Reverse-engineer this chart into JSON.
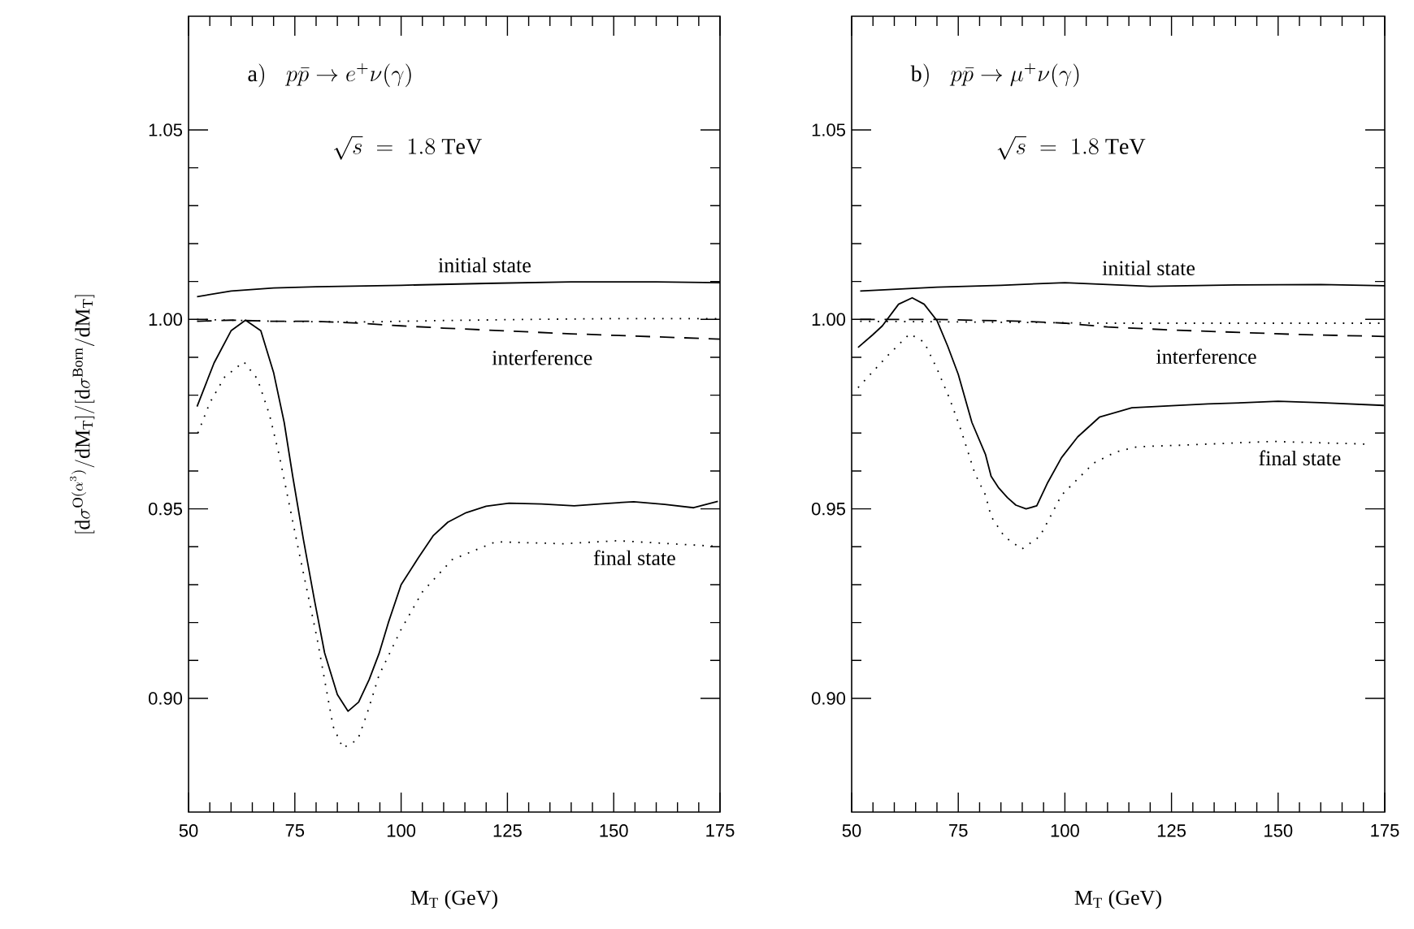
{
  "chart_data": [
    {
      "type": "line",
      "title": "\\mathrm{a)}\\;\\;\\; p\\bar{p}\\rightarrow e^{+}\\nu(\\gamma)",
      "subtitle": "\\sqrt{s}\\;=\\;1.8\\ \\mathrm{TeV}",
      "xlabel": "M$_{T}$ (GeV)",
      "ylabel": "[\\mathrm{d}\\sigma^{\\mathrm{O}(\\alpha^3)}/\\mathrm{dM_T}]/[\\mathrm{d}\\sigma^{\\mathrm{Born}}/\\mathrm{dM_T}]",
      "xlim": [
        50,
        175
      ],
      "xticks": [
        50,
        75,
        100,
        125,
        150,
        175
      ],
      "ylim": [
        0.87,
        1.08
      ],
      "yticks": [
        {
          "value": 0.9,
          "label": "0.90"
        },
        {
          "value": 0.95,
          "label": "0.95"
        },
        {
          "value": 1.0,
          "label": "1.00"
        },
        {
          "value": 1.05,
          "label": "1.05"
        }
      ],
      "marker": "none",
      "series": [
        {
          "name": "initial state",
          "color": "#000000",
          "line_style": "solid",
          "x": [
            52,
            60,
            70,
            80,
            100,
            120,
            140,
            160,
            175
          ],
          "values": [
            1.006,
            1.0075,
            1.0083,
            1.0086,
            1.009,
            1.0095,
            1.0099,
            1.0099,
            1.0097
          ]
        },
        {
          "name": "interference",
          "color": "#000000",
          "line_style": "dashed",
          "x": [
            52,
            60,
            70,
            80,
            90,
            100,
            110,
            120,
            130,
            140,
            150,
            160,
            175
          ],
          "values": [
            0.9995,
            0.9998,
            0.9995,
            0.9995,
            0.999,
            0.9983,
            0.9977,
            0.9972,
            0.9967,
            0.9962,
            0.9958,
            0.9954,
            0.9948
          ]
        },
        {
          "name": "final state",
          "color": "#000000",
          "line_style": "solid",
          "x": [
            52,
            56,
            60,
            63.4,
            67,
            70,
            72.5,
            74.5,
            77,
            79.6,
            82,
            85,
            87.5,
            90,
            92.5,
            94.8,
            97,
            100,
            104,
            107.6,
            111,
            115.3,
            120,
            125.4,
            133,
            140.7,
            148,
            154.7,
            162,
            168.8,
            174.5
          ],
          "values": [
            0.977,
            0.9885,
            0.997,
            0.9998,
            0.997,
            0.986,
            0.9728,
            0.9586,
            0.942,
            0.926,
            0.912,
            0.901,
            0.8966,
            0.899,
            0.905,
            0.9118,
            0.92,
            0.93,
            0.937,
            0.943,
            0.9465,
            0.949,
            0.9507,
            0.9515,
            0.9513,
            0.9508,
            0.9514,
            0.9519,
            0.9512,
            0.9503,
            0.952
          ]
        },
        {
          "color": "#000000",
          "line_style": "dotted",
          "x": [
            52,
            70,
            90,
            110,
            130,
            150,
            175
          ],
          "values": [
            1.0,
            0.9995,
            0.9993,
            0.9997,
            1.0,
            1.0002,
            1.0002
          ]
        },
        {
          "color": "#000000",
          "line_style": "dotted",
          "x": [
            52.2,
            55,
            58.5,
            63,
            66.2,
            69,
            71.3,
            75.7,
            80.2,
            84,
            86.3,
            89.8,
            92,
            94.8,
            100,
            105,
            112,
            122.2,
            138.2,
            150.9,
            174.5
          ],
          "values": [
            0.97,
            0.978,
            0.9848,
            0.9888,
            0.9843,
            0.975,
            0.9643,
            0.9401,
            0.916,
            0.8926,
            0.8869,
            0.8891,
            0.896,
            0.9061,
            0.9182,
            0.9281,
            0.9366,
            0.9413,
            0.9408,
            0.9416,
            0.9401
          ]
        }
      ]
    },
    {
      "type": "line",
      "title": "\\mathrm{b)}\\;\\;\\; p\\bar{p}\\rightarrow \\mu^{+}\\nu(\\gamma)",
      "subtitle": "\\sqrt{s}\\;=\\;1.8\\ \\mathrm{TeV}",
      "xlabel": "M$_{T}$ (GeV)",
      "xlim": [
        50,
        175
      ],
      "xticks": [
        50,
        75,
        100,
        125,
        150,
        175
      ],
      "ylim": [
        0.87,
        1.08
      ],
      "yticks": [
        {
          "value": 0.9,
          "label": "0.90"
        },
        {
          "value": 0.95,
          "label": "0.95"
        },
        {
          "value": 1.0,
          "label": "1.00"
        },
        {
          "value": 1.05,
          "label": "1.05"
        }
      ],
      "marker": "none",
      "series": [
        {
          "name": "initial state",
          "color": "#000000",
          "line_style": "solid",
          "x": [
            52,
            70,
            85,
            100,
            120,
            140,
            160,
            175
          ],
          "values": [
            1.0075,
            1.0085,
            1.009,
            1.0097,
            1.0087,
            1.0091,
            1.0092,
            1.0089
          ]
        },
        {
          "name": "interference",
          "color": "#000000",
          "line_style": "dashed",
          "x": [
            52,
            70,
            90,
            100,
            110,
            125,
            140,
            155,
            175
          ],
          "values": [
            1.0,
            1.0,
            0.9995,
            0.999,
            0.998,
            0.9972,
            0.9966,
            0.996,
            0.9955
          ]
        },
        {
          "name": "final state",
          "color": "#000000",
          "line_style": "solid",
          "x": [
            51.5,
            55,
            57.2,
            61,
            64.2,
            67,
            70,
            72.5,
            75,
            78.2,
            81.4,
            82.7,
            84.5,
            86.5,
            88.5,
            90.9,
            93.4,
            96,
            99.2,
            103,
            108.1,
            115.7,
            125,
            133.5,
            142,
            150,
            160,
            174.8
          ],
          "values": [
            0.9926,
            0.996,
            0.9983,
            1.004,
            1.0057,
            1.004,
            0.9997,
            0.993,
            0.9855,
            0.9728,
            0.9643,
            0.9586,
            0.9555,
            0.953,
            0.951,
            0.95,
            0.9508,
            0.957,
            0.9635,
            0.969,
            0.9742,
            0.9767,
            0.9772,
            0.9777,
            0.978,
            0.9784,
            0.978,
            0.9773
          ]
        },
        {
          "color": "#000000",
          "line_style": "dotted",
          "x": [
            52,
            80,
            110,
            140,
            175
          ],
          "values": [
            0.9995,
            0.9993,
            0.999,
            0.999,
            0.999
          ]
        },
        {
          "color": "#000000",
          "line_style": "dotted",
          "x": [
            51.5,
            58.5,
            63.6,
            67,
            70,
            73,
            75.7,
            78.9,
            81.4,
            82.7,
            85.8,
            89.9,
            94.1,
            96.6,
            99.2,
            103,
            106.8,
            111.9,
            117,
            127.1,
            148.7,
            170.3
          ],
          "values": [
            0.982,
            0.9905,
            0.9962,
            0.994,
            0.987,
            0.979,
            0.9706,
            0.9593,
            0.9536,
            0.948,
            0.9427,
            0.9394,
            0.9427,
            0.948,
            0.9536,
            0.9579,
            0.9621,
            0.965,
            0.9664,
            0.9668,
            0.9678,
            0.9671
          ]
        }
      ]
    }
  ]
}
